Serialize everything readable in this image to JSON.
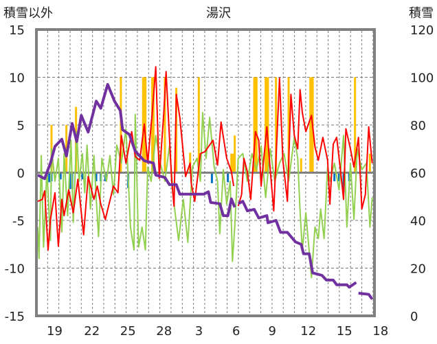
{
  "chart_data": {
    "type": "line",
    "title": "湯沢",
    "ylabel_left": "積雪以外",
    "ylabel_right": "積雪",
    "ylim_left": [
      -15,
      15
    ],
    "ylim_right": [
      0,
      120
    ],
    "xlim_days": [
      0,
      28
    ],
    "yticks_left": [
      "15",
      "10",
      "5",
      "0",
      "-5",
      "-10",
      "-15"
    ],
    "yticks_left_values": [
      15,
      10,
      5,
      0,
      -5,
      -10,
      -15
    ],
    "yticks_right": [
      "120",
      "100",
      "80",
      "60",
      "40",
      "20",
      "0"
    ],
    "yticks_right_values": [
      120,
      100,
      80,
      60,
      40,
      20,
      0
    ],
    "xticks": [
      {
        "label": "19",
        "day": 1.4
      },
      {
        "label": "22",
        "day": 4.5
      },
      {
        "label": "25",
        "day": 7.5
      },
      {
        "label": "28",
        "day": 10.5
      },
      {
        "label": "3",
        "day": 13.4
      },
      {
        "label": "6",
        "day": 16.5
      },
      {
        "label": "9",
        "day": 19.5
      },
      {
        "label": "12",
        "day": 22.5
      },
      {
        "label": "15",
        "day": 25.5
      },
      {
        "label": "18",
        "day": 28.5
      }
    ],
    "grid": true,
    "colors": {
      "red": "#ff0000",
      "green": "#92d050",
      "orange": "#ffc000",
      "blue": "#0070c0",
      "purple": "#7030a0",
      "frame": "#808080"
    },
    "series": [
      {
        "name": "orange-bars",
        "type": "bar",
        "axis": "left",
        "color": "#ffc000",
        "points": [
          [
            1.14,
            5
          ],
          [
            2.38,
            5
          ],
          [
            3.18,
            6.9
          ],
          [
            6.91,
            10
          ],
          [
            8.76,
            10
          ],
          [
            8.86,
            10
          ],
          [
            8.95,
            10
          ],
          [
            9.52,
            10
          ],
          [
            9.62,
            10
          ],
          [
            10.57,
            10
          ],
          [
            11.52,
            8.9
          ],
          [
            12.67,
            2.1
          ],
          [
            13.39,
            10
          ],
          [
            16.1,
            2
          ],
          [
            16.23,
            2
          ],
          [
            16.38,
            3.9
          ],
          [
            18.0,
            10
          ],
          [
            18.1,
            10
          ],
          [
            18.19,
            10
          ],
          [
            18.95,
            10
          ],
          [
            19.05,
            10
          ],
          [
            19.14,
            10
          ],
          [
            19.81,
            10
          ],
          [
            20.86,
            10
          ],
          [
            21.9,
            1.5
          ],
          [
            22.67,
            10
          ],
          [
            22.76,
            10
          ],
          [
            22.86,
            10
          ],
          [
            26.38,
            10
          ],
          [
            27.62,
            2
          ]
        ]
      },
      {
        "name": "blue-bars",
        "type": "bar",
        "axis": "left",
        "color": "#0070c0",
        "points": [
          [
            0.76,
            -0.9
          ],
          [
            0.95,
            -1.0
          ],
          [
            1.14,
            -0.9
          ],
          [
            1.9,
            -0.7
          ],
          [
            2.67,
            -1.7
          ],
          [
            2.86,
            -1.7
          ],
          [
            3.71,
            -0.7
          ],
          [
            4.86,
            -0.9
          ],
          [
            5.24,
            -0.9
          ],
          [
            5.62,
            -0.9
          ],
          [
            7.52,
            -1.6
          ],
          [
            14.48,
            -1.1
          ],
          [
            15.43,
            -0.7
          ],
          [
            15.81,
            -1.0
          ],
          [
            18.57,
            -0.7
          ],
          [
            24.67,
            -0.9
          ],
          [
            25.05,
            -0.9
          ],
          [
            25.43,
            -2.1
          ],
          [
            25.9,
            -0.9
          ]
        ]
      },
      {
        "name": "green-line",
        "type": "line",
        "axis": "left",
        "color": "#92d050",
        "points": [
          [
            0,
            -5.7
          ],
          [
            0.1,
            -9.0
          ],
          [
            0.29,
            1.8
          ],
          [
            0.48,
            -7.8
          ],
          [
            0.76,
            0.3
          ],
          [
            1.05,
            -7.1
          ],
          [
            1.14,
            2.5
          ],
          [
            1.43,
            -0.9
          ],
          [
            1.71,
            1.5
          ],
          [
            2.0,
            -6.2
          ],
          [
            2.19,
            2.0
          ],
          [
            2.48,
            -4.5
          ],
          [
            2.76,
            3.4
          ],
          [
            2.95,
            -5.2
          ],
          [
            3.24,
            4.3
          ],
          [
            3.43,
            -0.9
          ],
          [
            3.71,
            2.0
          ],
          [
            3.9,
            -2.1
          ],
          [
            4.1,
            2.9
          ],
          [
            4.38,
            -3.8
          ],
          [
            4.67,
            1.8
          ],
          [
            4.86,
            -2.8
          ],
          [
            5.05,
            -6.7
          ],
          [
            5.33,
            1.5
          ],
          [
            5.71,
            -0.9
          ],
          [
            6.0,
            1.8
          ],
          [
            6.29,
            -2.3
          ],
          [
            6.57,
            2.9
          ],
          [
            6.95,
            1.0
          ],
          [
            7.33,
            4.6
          ],
          [
            7.71,
            -5.7
          ],
          [
            8.0,
            -8.1
          ],
          [
            8.1,
            6.1
          ],
          [
            8.38,
            -7.8
          ],
          [
            8.67,
            -5.7
          ],
          [
            8.95,
            -8.1
          ],
          [
            9.14,
            0.6
          ],
          [
            9.43,
            -0.9
          ],
          [
            9.81,
            3.9
          ],
          [
            10.19,
            1.0
          ],
          [
            10.57,
            -0.9
          ],
          [
            10.95,
            2.8
          ],
          [
            11.33,
            -3.3
          ],
          [
            11.71,
            -7.1
          ],
          [
            12.1,
            -2.8
          ],
          [
            12.48,
            -7.3
          ],
          [
            12.86,
            0.6
          ],
          [
            13.24,
            1.5
          ],
          [
            13.52,
            -0.9
          ],
          [
            13.71,
            6.3
          ],
          [
            14.0,
            1.5
          ],
          [
            14.29,
            5.8
          ],
          [
            14.67,
            0.6
          ],
          [
            14.95,
            -0.9
          ],
          [
            15.14,
            -6.4
          ],
          [
            15.43,
            0.3
          ],
          [
            15.71,
            -3.3
          ],
          [
            16.0,
            -0.9
          ],
          [
            16.19,
            -9.3
          ],
          [
            16.38,
            -5.7
          ],
          [
            16.67,
            1.5
          ],
          [
            17.05,
            2.0
          ],
          [
            17.43,
            -0.9
          ],
          [
            17.81,
            2.0
          ],
          [
            18.19,
            0.3
          ],
          [
            18.57,
            2.8
          ],
          [
            18.95,
            -2.6
          ],
          [
            19.33,
            2.5
          ],
          [
            19.71,
            -0.9
          ],
          [
            20.1,
            1.0
          ],
          [
            20.48,
            2.0
          ],
          [
            20.86,
            -0.9
          ],
          [
            21.33,
            3.7
          ],
          [
            21.62,
            1.5
          ],
          [
            21.81,
            -4.0
          ],
          [
            22.0,
            -8.1
          ],
          [
            22.29,
            -4.2
          ],
          [
            22.76,
            -11.0
          ],
          [
            23.05,
            -5.7
          ],
          [
            23.33,
            -6.9
          ],
          [
            23.52,
            -3.8
          ],
          [
            23.81,
            -6.9
          ],
          [
            24.1,
            0.6
          ],
          [
            24.29,
            -0.9
          ],
          [
            24.67,
            1.0
          ],
          [
            25.05,
            -1.8
          ],
          [
            25.43,
            3.9
          ],
          [
            25.71,
            -5.7
          ],
          [
            26.0,
            1.0
          ],
          [
            26.29,
            -4.9
          ],
          [
            26.57,
            2.5
          ],
          [
            26.95,
            0.3
          ],
          [
            27.33,
            1.0
          ],
          [
            27.62,
            -5.7
          ],
          [
            27.81,
            -2.6
          ]
        ]
      },
      {
        "name": "red-line",
        "type": "line",
        "axis": "left",
        "color": "#ff0000",
        "points": [
          [
            0,
            -3.0
          ],
          [
            0.38,
            -2.8
          ],
          [
            0.57,
            -1.9
          ],
          [
            0.86,
            -8.1
          ],
          [
            1.05,
            -4.9
          ],
          [
            1.43,
            -2.1
          ],
          [
            1.71,
            -7.7
          ],
          [
            2.0,
            -2.8
          ],
          [
            2.19,
            -4.5
          ],
          [
            2.57,
            -1.8
          ],
          [
            2.95,
            -4.2
          ],
          [
            3.33,
            -0.7
          ],
          [
            3.81,
            -6.5
          ],
          [
            4.19,
            -0.4
          ],
          [
            4.67,
            -2.8
          ],
          [
            4.95,
            -1.4
          ],
          [
            5.24,
            -3.3
          ],
          [
            5.62,
            -4.9
          ],
          [
            6.29,
            -1.4
          ],
          [
            6.67,
            -2.1
          ],
          [
            6.95,
            3.9
          ],
          [
            7.33,
            1.0
          ],
          [
            7.81,
            4.3
          ],
          [
            8.1,
            1.7
          ],
          [
            8.48,
            1.3
          ],
          [
            8.86,
            5.1
          ],
          [
            9.14,
            1.0
          ],
          [
            9.52,
            6.3
          ],
          [
            9.81,
            11.1
          ],
          [
            10.1,
            -0.6
          ],
          [
            10.48,
            6.3
          ],
          [
            10.67,
            10.6
          ],
          [
            11.14,
            -0.9
          ],
          [
            11.33,
            -3.5
          ],
          [
            11.52,
            8.2
          ],
          [
            11.81,
            5.8
          ],
          [
            12.29,
            -0.4
          ],
          [
            12.67,
            1.0
          ],
          [
            12.76,
            -1.1
          ],
          [
            13.05,
            -3.0
          ],
          [
            13.52,
            2.0
          ],
          [
            13.9,
            2.2
          ],
          [
            14.57,
            3.4
          ],
          [
            14.95,
            0.8
          ],
          [
            15.24,
            5.3
          ],
          [
            15.71,
            1.5
          ],
          [
            16.1,
            0.1
          ],
          [
            16.29,
            -1.4
          ],
          null,
          [
            16.67,
            -3.5
          ],
          [
            16.95,
            -2.3
          ],
          [
            17.14,
            1.5
          ],
          [
            17.43,
            0.1
          ],
          [
            17.71,
            -2.8
          ],
          [
            18.1,
            4.3
          ],
          [
            18.38,
            3.4
          ],
          [
            18.57,
            -1.4
          ],
          [
            19.05,
            4.8
          ],
          [
            19.33,
            0.3
          ],
          [
            19.62,
            -4.0
          ],
          [
            19.9,
            3.9
          ],
          [
            20.1,
            9.9
          ],
          [
            20.38,
            1.3
          ],
          [
            20.76,
            -3.0
          ],
          [
            21.05,
            8.2
          ],
          [
            21.33,
            3.9
          ],
          [
            21.62,
            2.5
          ],
          [
            21.81,
            8.7
          ],
          [
            22.0,
            6.3
          ],
          [
            22.29,
            4.3
          ],
          [
            22.76,
            6.0
          ],
          [
            23.05,
            2.7
          ],
          [
            23.33,
            1.3
          ],
          [
            23.71,
            3.7
          ],
          [
            24.1,
            1.3
          ],
          [
            24.29,
            -3.3
          ],
          [
            24.57,
            3.0
          ],
          [
            24.86,
            3.7
          ],
          [
            25.14,
            0.6
          ],
          [
            25.43,
            -2.8
          ],
          [
            25.62,
            4.6
          ],
          [
            26.0,
            2.5
          ],
          [
            26.29,
            0.6
          ],
          [
            26.67,
            3.7
          ],
          [
            26.95,
            -3.8
          ],
          [
            27.24,
            -2.3
          ],
          [
            27.52,
            4.8
          ],
          [
            27.81,
            1.0
          ]
        ]
      },
      {
        "name": "snow-depth",
        "type": "line",
        "axis": "right",
        "color": "#7030a0",
        "points": [
          [
            0,
            59
          ],
          [
            0.57,
            57.5
          ],
          [
            1.05,
            64
          ],
          [
            1.43,
            71
          ],
          [
            2.0,
            74
          ],
          [
            2.38,
            67
          ],
          [
            2.86,
            80.6
          ],
          [
            3.24,
            73
          ],
          [
            3.62,
            84
          ],
          [
            4.19,
            77
          ],
          [
            4.86,
            90
          ],
          [
            5.24,
            87
          ],
          [
            5.81,
            97
          ],
          [
            6.38,
            90
          ],
          [
            6.86,
            86
          ],
          [
            7.05,
            78
          ],
          [
            7.62,
            76
          ],
          [
            8.1,
            69
          ],
          [
            8.86,
            65
          ],
          [
            9.62,
            64
          ],
          [
            9.81,
            59
          ],
          [
            10.57,
            58
          ],
          [
            10.95,
            55
          ],
          [
            11.52,
            55
          ],
          [
            11.81,
            51
          ],
          [
            13.81,
            51
          ],
          [
            14.19,
            52
          ],
          [
            14.38,
            47.5
          ],
          [
            15.14,
            47
          ],
          [
            15.43,
            42
          ],
          [
            15.81,
            42
          ],
          [
            16.1,
            49
          ],
          [
            16.38,
            45.5
          ],
          null,
          [
            16.67,
            47
          ],
          [
            17.05,
            48
          ],
          [
            17.43,
            44
          ],
          [
            18.0,
            44.6
          ],
          [
            18.38,
            41
          ],
          [
            19.05,
            42
          ],
          [
            19.14,
            39
          ],
          [
            19.81,
            40
          ],
          [
            20.19,
            35
          ],
          [
            20.76,
            35
          ],
          [
            21.43,
            31
          ],
          [
            21.9,
            30
          ],
          [
            22.1,
            26
          ],
          [
            22.57,
            26
          ],
          [
            22.86,
            18
          ],
          [
            23.62,
            17
          ],
          [
            24.0,
            15
          ],
          [
            24.57,
            15
          ],
          [
            24.86,
            13
          ],
          [
            25.71,
            13
          ],
          [
            25.9,
            12
          ],
          [
            26.48,
            14
          ],
          null,
          [
            26.67,
            9.5
          ],
          [
            27.52,
            9
          ],
          [
            27.81,
            7
          ]
        ]
      }
    ]
  }
}
